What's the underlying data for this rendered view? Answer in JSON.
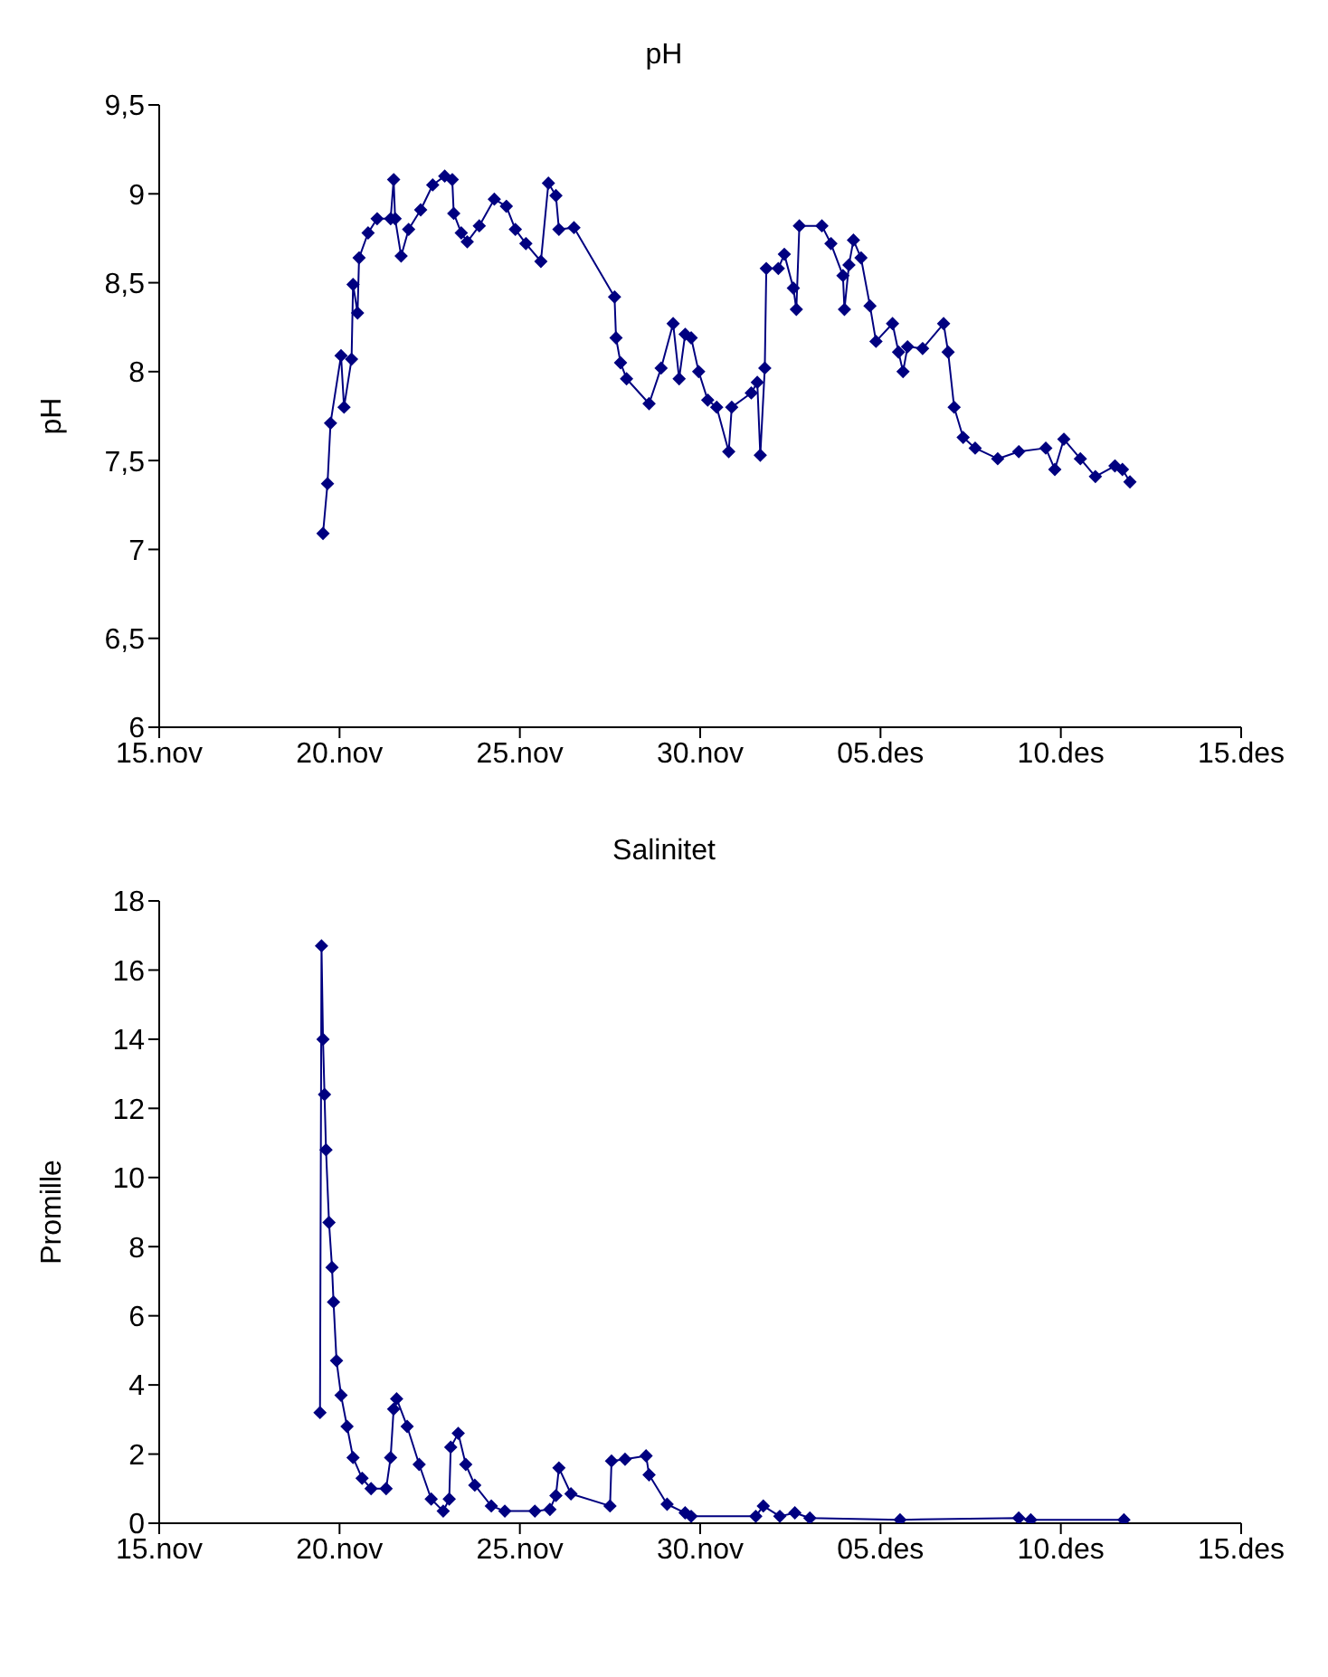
{
  "chart_data": [
    {
      "type": "line",
      "title": "pH",
      "ylabel": "pH",
      "marker": "diamond",
      "line_style": "solid",
      "grid": false,
      "xlim": [
        "--11-15",
        "--12-15"
      ],
      "xticks": [
        {
          "value": "--11-15",
          "label": "15.nov"
        },
        {
          "value": "--11-20",
          "label": "20.nov"
        },
        {
          "value": "--11-25",
          "label": "25.nov"
        },
        {
          "value": "--11-30",
          "label": "30.nov"
        },
        {
          "value": "--12-05",
          "label": "05.des"
        },
        {
          "value": "--12-10",
          "label": "10.des"
        },
        {
          "value": "--12-15",
          "label": "15.des"
        }
      ],
      "ylim": [
        6,
        9.5
      ],
      "yticks": [
        6,
        {
          "value": 6.5,
          "label": "6,5"
        },
        7,
        {
          "value": 7.5,
          "label": "7,5"
        },
        8,
        {
          "value": 8.5,
          "label": "8,5"
        },
        9,
        {
          "value": 9.5,
          "label": "9,5"
        }
      ],
      "series": [
        {
          "color": "#000080",
          "x": [
            "--11-19T13:00",
            "--11-19T16:00",
            "--11-19T18:00",
            "--11-20T01:00",
            "--11-20T03:00",
            "--11-20T08:00",
            "--11-20T09:00",
            "--11-20T12:00",
            "--11-20T13:00",
            "--11-20T19:00",
            "--11-21T01:00",
            "--11-21T10:00",
            "--11-21T12:00",
            "--11-21T13:00",
            "--11-21T17:00",
            "--11-21T22:00",
            "--11-22T06:00",
            "--11-22T14:00",
            "--11-22T22:00",
            "--11-23T03:00",
            "--11-23T04:00",
            "--11-23T09:00",
            "--11-23T13:00",
            "--11-23T21:00",
            "--11-24T07:00",
            "--11-24T15:00",
            "--11-24T21:00",
            "--11-25T04:00",
            "--11-25T14:00",
            "--11-25T19:00",
            "--11-26T00:00",
            "--11-26T02:00",
            "--11-26T12:00",
            "--11-27T15:00",
            "--11-27T16:00",
            "--11-27T19:00",
            "--11-27T23:00",
            "--11-28T14:00",
            "--11-28T22:00",
            "--11-29T06:00",
            "--11-29T10:00",
            "--11-29T14:00",
            "--11-29T18:00",
            "--11-29T23:00",
            "--11-30T05:00",
            "--11-30T11:00",
            "--11-30T19:00",
            "--11-30T21:00",
            "--12-01T10:00",
            "--12-01T14:00",
            "--12-01T16:00",
            "--12-01T19:00",
            "--12-01T20:00",
            "--12-02T04:00",
            "--12-02T08:00",
            "--12-02T14:00",
            "--12-02T16:00",
            "--12-02T18:00",
            "--12-03T09:00",
            "--12-03T15:00",
            "--12-03T23:00",
            "--12-04T00:00",
            "--12-04T03:00",
            "--12-04T06:00",
            "--12-04T11:00",
            "--12-04T17:00",
            "--12-04T21:00",
            "--12-05T08:00",
            "--12-05T12:00",
            "--12-05T15:00",
            "--12-05T18:00",
            "--12-06T04:00",
            "--12-06T18:00",
            "--12-06T21:00",
            "--12-07T01:00",
            "--12-07T07:00",
            "--12-07T15:00",
            "--12-08T06:00",
            "--12-08T20:00",
            "--12-09T14:00",
            "--12-09T20:00",
            "--12-10T02:00",
            "--12-10T13:00",
            "--12-10T23:00",
            "--12-11T12:00",
            "--12-11T17:00",
            "--12-11T22:00"
          ],
          "values": [
            7.09,
            7.37,
            7.71,
            8.09,
            7.8,
            8.07,
            8.49,
            8.33,
            8.64,
            8.78,
            8.86,
            8.86,
            9.08,
            8.86,
            8.65,
            8.8,
            8.91,
            9.05,
            9.1,
            9.08,
            8.89,
            8.78,
            8.73,
            8.82,
            8.97,
            8.93,
            8.8,
            8.72,
            8.62,
            9.06,
            8.99,
            8.8,
            8.81,
            8.42,
            8.19,
            8.05,
            7.96,
            7.82,
            8.02,
            8.27,
            7.96,
            8.21,
            8.19,
            8.0,
            7.84,
            7.8,
            7.55,
            7.8,
            7.88,
            7.94,
            7.53,
            8.02,
            8.58,
            8.58,
            8.66,
            8.47,
            8.35,
            8.82,
            8.82,
            8.72,
            8.54,
            8.35,
            8.6,
            8.74,
            8.64,
            8.37,
            8.17,
            8.27,
            8.11,
            8.0,
            8.14,
            8.13,
            8.27,
            8.11,
            7.8,
            7.63,
            7.57,
            7.51,
            7.55,
            7.57,
            7.45,
            7.62,
            7.51,
            7.41,
            7.47,
            7.45,
            7.38
          ]
        }
      ]
    },
    {
      "type": "line",
      "title": "Salinitet",
      "ylabel": "Promille",
      "marker": "diamond",
      "line_style": "solid",
      "grid": false,
      "xlim": [
        "--11-15",
        "--12-15"
      ],
      "xticks": [
        {
          "value": "--11-15",
          "label": "15.nov"
        },
        {
          "value": "--11-20",
          "label": "20.nov"
        },
        {
          "value": "--11-25",
          "label": "25.nov"
        },
        {
          "value": "--11-30",
          "label": "30.nov"
        },
        {
          "value": "--12-05",
          "label": "05.des"
        },
        {
          "value": "--12-10",
          "label": "10.des"
        },
        {
          "value": "--12-15",
          "label": "15.des"
        }
      ],
      "ylim": [
        0,
        18
      ],
      "yticks": [
        0,
        2,
        4,
        6,
        8,
        10,
        12,
        14,
        16,
        18
      ],
      "series": [
        {
          "color": "#000080",
          "x": [
            "--11-19T11:00",
            "--11-19T12:00",
            "--11-19T13:00",
            "--11-19T14:00",
            "--11-19T15:00",
            "--11-19T17:00",
            "--11-19T19:00",
            "--11-19T20:00",
            "--11-19T22:00",
            "--11-20T01:00",
            "--11-20T05:00",
            "--11-20T09:00",
            "--11-20T15:00",
            "--11-20T21:00",
            "--11-21T07:00",
            "--11-21T10:00",
            "--11-21T12:00",
            "--11-21T14:00",
            "--11-21T21:00",
            "--11-22T05:00",
            "--11-22T13:00",
            "--11-22T21:00",
            "--11-23T01:00",
            "--11-23T02:00",
            "--11-23T07:00",
            "--11-23T12:00",
            "--11-23T18:00",
            "--11-24T05:00",
            "--11-24T14:00",
            "--11-25T10:00",
            "--11-25T20:00",
            "--11-26T00:00",
            "--11-26T02:00",
            "--11-26T10:00",
            "--11-27T12:00",
            "--11-27T13:00",
            "--11-27T22:00",
            "--11-28T12:00",
            "--11-28T14:00",
            "--11-29T02:00",
            "--11-29T14:00",
            "--11-29T18:00",
            "--12-01T13:00",
            "--12-01T18:00",
            "--12-02T05:00",
            "--12-02T15:00",
            "--12-03T01:00",
            "--12-05T13:00",
            "--12-08T20:00",
            "--12-09T04:00",
            "--12-11T18:00"
          ],
          "values": [
            3.2,
            16.7,
            14.0,
            12.4,
            10.8,
            8.7,
            7.4,
            6.4,
            4.7,
            3.7,
            2.8,
            1.9,
            1.3,
            1.0,
            1.0,
            1.9,
            3.3,
            3.6,
            2.8,
            1.7,
            0.7,
            0.35,
            0.7,
            2.2,
            2.6,
            1.7,
            1.1,
            0.5,
            0.35,
            0.35,
            0.4,
            0.8,
            1.6,
            0.85,
            0.5,
            1.8,
            1.85,
            1.95,
            1.4,
            0.55,
            0.3,
            0.2,
            0.2,
            0.5,
            0.2,
            0.3,
            0.15,
            0.1,
            0.15,
            0.1,
            0.1
          ]
        }
      ]
    }
  ]
}
